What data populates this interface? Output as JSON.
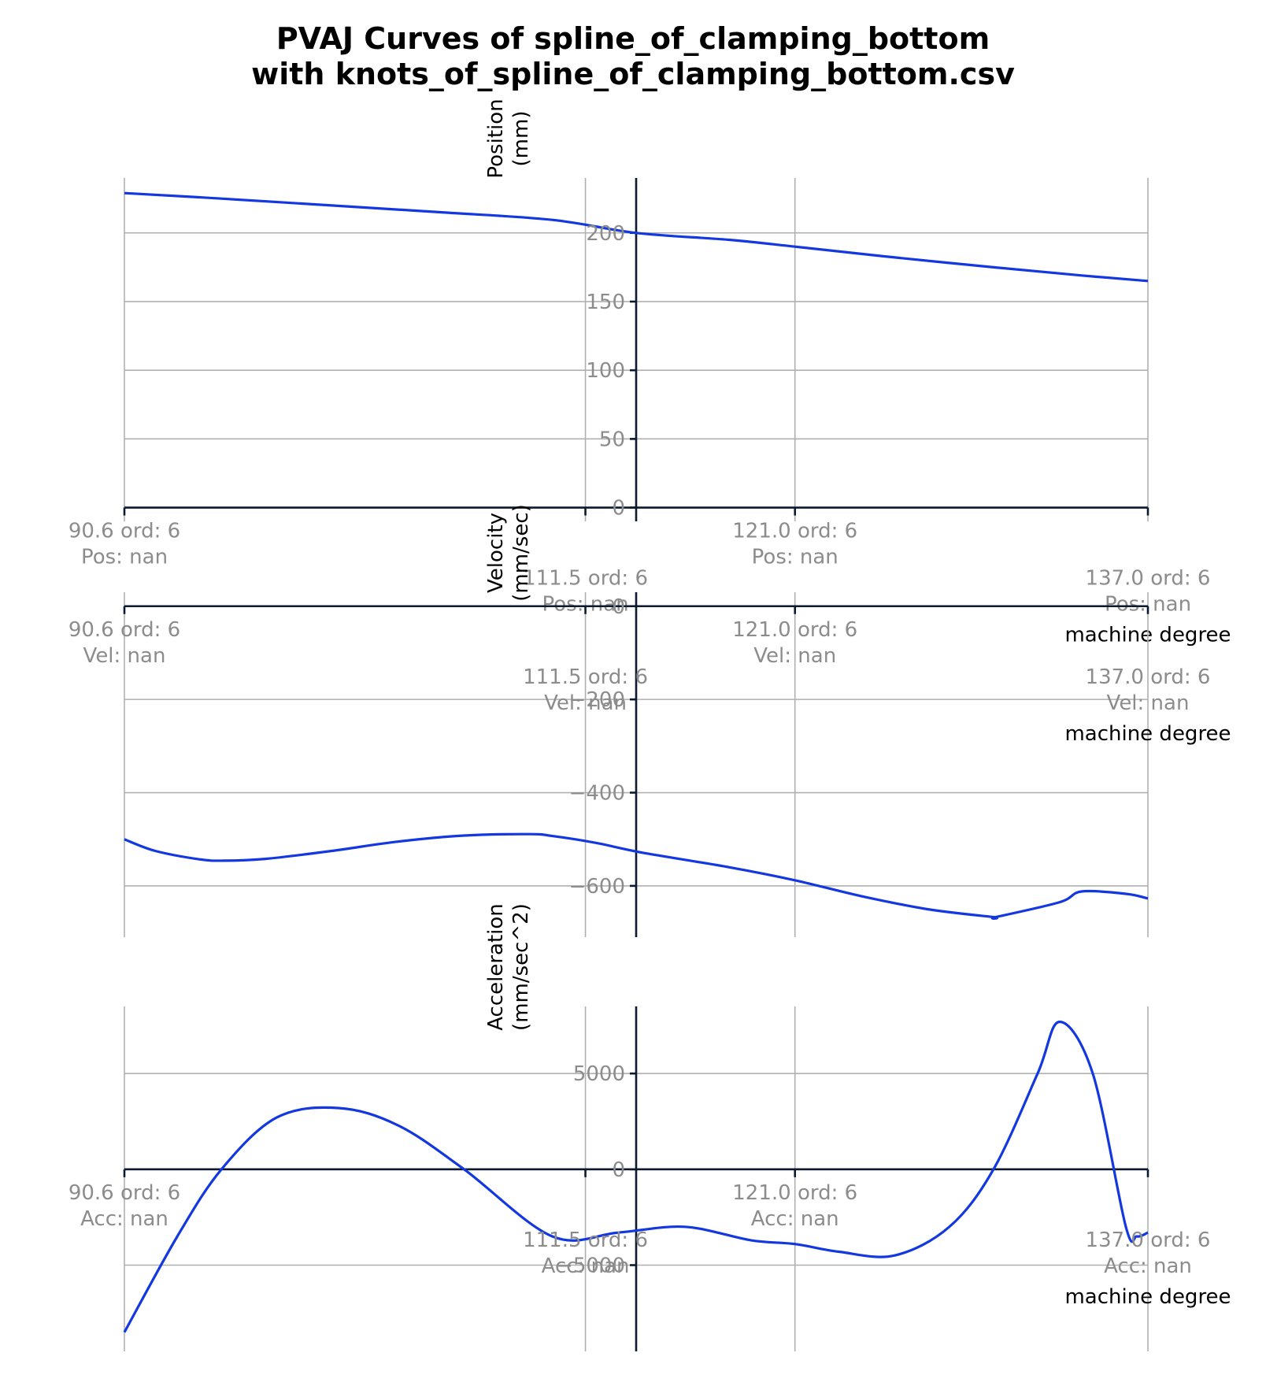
{
  "title_line1": "PVAJ Curves of spline_of_clamping_bottom",
  "title_line2": "with knots_of_spline_of_clamping_bottom.csv",
  "chart_data": [
    {
      "type": "line",
      "ylabel_line1": "Position",
      "ylabel_line2": "(mm)",
      "xlabel": "machine degree",
      "xlim": [
        90.6,
        137.0
      ],
      "ylim": [
        -10,
        240
      ],
      "yticks": [
        0,
        50,
        100,
        150,
        200
      ],
      "ytick_labels": [
        "0",
        "50",
        "100",
        "150",
        "200"
      ],
      "grid": true,
      "knots": [
        {
          "x": 90.6,
          "line1": "90.6 ord: 6",
          "line2": "Pos: nan"
        },
        {
          "x": 111.5,
          "line1": "111.5 ord: 6",
          "line2": "Pos: nan"
        },
        {
          "x": 121.0,
          "line1": "121.0 ord: 6",
          "line2": "Pos: nan"
        },
        {
          "x": 137.0,
          "line1": "137.0 ord: 6",
          "line2": "Pos: nan"
        }
      ],
      "series": [
        {
          "color": "#1438e0",
          "x": [
            90.6,
            95,
            100,
            105,
            110,
            113.8,
            118,
            121,
            125,
            130,
            134,
            137.0
          ],
          "y": [
            229,
            225,
            220,
            215,
            209.5,
            200,
            195,
            190,
            183,
            175,
            169,
            165
          ]
        }
      ]
    },
    {
      "type": "line",
      "ylabel_line1": "Velocity",
      "ylabel_line2": "(mm/sec)",
      "xlabel": "machine degree",
      "xlim": [
        90.6,
        137.0
      ],
      "ylim": [
        -710,
        30
      ],
      "yticks": [
        0,
        -200,
        -400,
        -600
      ],
      "ytick_labels": [
        "0",
        "−200",
        "−400",
        "−600"
      ],
      "grid": true,
      "knots": [
        {
          "x": 90.6,
          "line1": "90.6 ord: 6",
          "line2": "Vel: nan"
        },
        {
          "x": 111.5,
          "line1": "111.5 ord: 6",
          "line2": "Vel: nan"
        },
        {
          "x": 121.0,
          "line1": "121.0 ord: 6",
          "line2": "Vel: nan"
        },
        {
          "x": 137.0,
          "line1": "137.0 ord: 6",
          "line2": "Vel: nan"
        }
      ],
      "series": [
        {
          "color": "#1438e0",
          "x": [
            90.6,
            92,
            94,
            95.1,
            97,
            100,
            103,
            106,
            109,
            110,
            112,
            114,
            118,
            121,
            124,
            127,
            130,
            130.1,
            133,
            134,
            136,
            137.0
          ],
          "y": [
            -500,
            -525,
            -543,
            -546,
            -542,
            -525,
            -505,
            -492,
            -489,
            -493,
            -508,
            -528,
            -560,
            -588,
            -622,
            -650,
            -667,
            -667,
            -635,
            -612,
            -617,
            -627
          ]
        }
      ]
    },
    {
      "type": "line",
      "ylabel_line1": "Acceleration",
      "ylabel_line2": "(mm/sec^2)",
      "xlabel": "machine degree",
      "xlim": [
        90.6,
        137.0
      ],
      "ylim": [
        -9500,
        8500
      ],
      "yticks": [
        5000,
        0,
        -5000
      ],
      "ytick_labels": [
        "5000",
        "0",
        "−5000"
      ],
      "grid": true,
      "knots": [
        {
          "x": 90.6,
          "line1": "90.6 ord: 6",
          "line2": "Acc: nan"
        },
        {
          "x": 111.5,
          "line1": "111.5 ord: 6",
          "line2": "Acc: nan"
        },
        {
          "x": 121.0,
          "line1": "121.0 ord: 6",
          "line2": "Acc: nan"
        },
        {
          "x": 137.0,
          "line1": "137.0 ord: 6",
          "line2": "Acc: nan"
        }
      ],
      "series": [
        {
          "color": "#1438e0",
          "x": [
            90.6,
            93,
            95,
            97.5,
            100.3,
            103,
            106,
            110,
            113,
            116,
            119,
            121,
            123,
            125.5,
            128,
            130,
            132,
            133,
            134.5,
            136,
            136.5,
            137.0
          ],
          "y": [
            -8500,
            -3500,
            0,
            2700,
            3200,
            2300,
            0,
            -3500,
            -3300,
            -3000,
            -3700,
            -3900,
            -4300,
            -4500,
            -3000,
            0,
            5000,
            7700,
            5000,
            -3000,
            -3500,
            -3300
          ]
        }
      ]
    }
  ]
}
